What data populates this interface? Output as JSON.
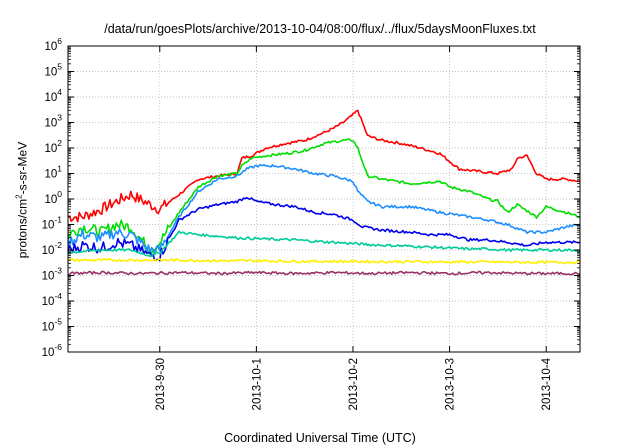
{
  "chart_data": {
    "type": "line",
    "title": "/data/run/goesPlots/archive/2013-10-04/08:00/flux/../flux/5daysMoonFluxes.txt",
    "xlabel": "Coordinated Universal Time (UTC)",
    "ylabel_main": "protons/cm",
    "ylabel_sup": "2",
    "ylabel_rest": "-s-sr-MeV",
    "yscale": "log",
    "ylim": [
      1e-06,
      1000000.0
    ],
    "xlim": [
      -0.95,
      4.35
    ],
    "grid": true,
    "x_ticks": [
      {
        "x": 0,
        "label": "2013-9-30"
      },
      {
        "x": 1,
        "label": "2013-10-1"
      },
      {
        "x": 2,
        "label": "2013-10-2"
      },
      {
        "x": 3,
        "label": "2013-10-3"
      },
      {
        "x": 4,
        "label": "2013-10-4"
      }
    ],
    "y_ticks": [
      {
        "exp": -6,
        "base": "10",
        "sup": "-6"
      },
      {
        "exp": -5,
        "base": "10",
        "sup": "-5"
      },
      {
        "exp": -4,
        "base": "10",
        "sup": "-4"
      },
      {
        "exp": -3,
        "base": "10",
        "sup": "-3"
      },
      {
        "exp": -2,
        "base": "10",
        "sup": "-2"
      },
      {
        "exp": -1,
        "base": "10",
        "sup": "-1"
      },
      {
        "exp": 0,
        "base": "10",
        "sup": "0"
      },
      {
        "exp": 1,
        "base": "10",
        "sup": "1"
      },
      {
        "exp": 2,
        "base": "10",
        "sup": "2"
      },
      {
        "exp": 3,
        "base": "10",
        "sup": "3"
      },
      {
        "exp": 4,
        "base": "10",
        "sup": "4"
      },
      {
        "exp": 5,
        "base": "10",
        "sup": "5"
      },
      {
        "exp": 6,
        "base": "10",
        "sup": "6"
      }
    ],
    "series": [
      {
        "color": "#ff0000",
        "x": [
          -0.95,
          -0.8,
          -0.6,
          -0.45,
          -0.3,
          -0.1,
          0.0,
          0.2,
          0.4,
          0.6,
          0.8,
          0.85,
          0.95,
          1.1,
          1.3,
          1.5,
          1.7,
          1.8,
          1.9,
          2.0,
          2.05,
          2.15,
          2.3,
          2.5,
          2.7,
          2.9,
          3.1,
          3.3,
          3.5,
          3.65,
          3.7,
          3.8,
          3.9,
          4.0,
          4.2,
          4.35
        ],
        "y": [
          0.2,
          0.2,
          0.4,
          0.8,
          1.5,
          0.6,
          0.4,
          1.5,
          6,
          8,
          10,
          40,
          50,
          100,
          150,
          200,
          400,
          600,
          1000,
          2000,
          3000,
          300,
          200,
          150,
          100,
          60,
          15,
          12,
          10,
          15,
          40,
          50,
          10,
          6,
          6,
          5
        ]
      },
      {
        "color": "#00dd00",
        "x": [
          -0.95,
          -0.8,
          -0.6,
          -0.45,
          -0.3,
          -0.1,
          0.0,
          0.2,
          0.4,
          0.6,
          0.8,
          0.85,
          0.95,
          1.1,
          1.3,
          1.5,
          1.7,
          1.9,
          2.0,
          2.05,
          2.15,
          2.3,
          2.6,
          2.9,
          3.0,
          3.2,
          3.4,
          3.5,
          3.6,
          3.7,
          3.9,
          4.0,
          4.2,
          4.35
        ],
        "y": [
          0.04,
          0.08,
          0.05,
          0.1,
          0.08,
          0.01,
          0.02,
          0.3,
          3,
          8,
          10,
          20,
          40,
          50,
          60,
          80,
          150,
          200,
          200,
          100,
          8,
          6,
          4,
          5,
          3,
          2,
          1,
          0.8,
          0.3,
          0.6,
          0.2,
          0.5,
          0.3,
          0.2
        ]
      },
      {
        "color": "#1e8fff",
        "x": [
          -0.95,
          -0.8,
          -0.6,
          -0.45,
          -0.3,
          -0.1,
          0.0,
          0.2,
          0.4,
          0.6,
          0.8,
          0.9,
          1.0,
          1.2,
          1.4,
          1.6,
          1.8,
          2.0,
          2.05,
          2.15,
          2.3,
          2.6,
          2.9,
          3.2,
          3.4,
          3.6,
          3.8,
          4.0,
          4.2,
          4.35
        ],
        "y": [
          0.02,
          0.04,
          0.03,
          0.05,
          0.04,
          0.01,
          0.01,
          0.2,
          2,
          6,
          8,
          15,
          20,
          20,
          15,
          10,
          8,
          5,
          2,
          0.8,
          0.5,
          0.5,
          0.3,
          0.2,
          0.15,
          0.1,
          0.05,
          0.05,
          0.08,
          0.1
        ]
      },
      {
        "color": "#0000ee",
        "x": [
          -0.95,
          -0.8,
          -0.6,
          -0.45,
          -0.3,
          -0.1,
          0.0,
          0.1,
          0.2,
          0.4,
          0.6,
          0.8,
          0.9,
          1.0,
          1.2,
          1.4,
          1.6,
          1.8,
          2.0,
          2.1,
          2.3,
          2.6,
          2.8,
          3.0,
          3.2,
          3.4,
          3.6,
          3.8,
          4.0,
          4.2,
          4.35
        ],
        "y": [
          0.01,
          0.015,
          0.012,
          0.02,
          0.015,
          0.006,
          0.006,
          0.03,
          0.15,
          0.4,
          0.6,
          0.8,
          1.2,
          0.8,
          0.6,
          0.5,
          0.3,
          0.25,
          0.15,
          0.08,
          0.06,
          0.05,
          0.04,
          0.04,
          0.025,
          0.025,
          0.02,
          0.015,
          0.02,
          0.02,
          0.02
        ]
      },
      {
        "color": "#00cc99",
        "x": [
          -0.95,
          -0.6,
          -0.3,
          -0.1,
          0.0,
          0.1,
          0.2,
          0.4,
          0.6,
          0.8,
          1.0,
          1.2,
          1.4,
          1.6,
          1.8,
          2.0,
          2.2,
          2.4,
          2.6,
          2.8,
          3.0,
          3.2,
          3.4,
          3.6,
          3.8,
          4.0,
          4.2,
          4.35
        ],
        "y": [
          0.008,
          0.01,
          0.01,
          0.006,
          0.008,
          0.02,
          0.05,
          0.04,
          0.035,
          0.03,
          0.028,
          0.026,
          0.025,
          0.022,
          0.02,
          0.018,
          0.016,
          0.015,
          0.014,
          0.013,
          0.012,
          0.011,
          0.011,
          0.01,
          0.01,
          0.01,
          0.01,
          0.01
        ]
      },
      {
        "color": "#ffee00",
        "x": [
          -0.95,
          -0.6,
          -0.2,
          0.2,
          0.6,
          1.0,
          1.4,
          1.8,
          2.2,
          2.6,
          3.0,
          3.4,
          3.8,
          4.35
        ],
        "y": [
          0.004,
          0.004,
          0.004,
          0.004,
          0.0038,
          0.0038,
          0.0036,
          0.0036,
          0.0035,
          0.0035,
          0.0034,
          0.0034,
          0.0033,
          0.0033
        ]
      },
      {
        "color": "#993366",
        "x": [
          -0.95,
          -0.6,
          -0.2,
          0.2,
          0.6,
          1.0,
          1.4,
          1.8,
          2.2,
          2.6,
          3.0,
          3.4,
          3.8,
          4.35
        ],
        "y": [
          0.0012,
          0.0013,
          0.0012,
          0.0013,
          0.0012,
          0.0013,
          0.0012,
          0.0013,
          0.0012,
          0.0013,
          0.0012,
          0.0013,
          0.0012,
          0.0012
        ]
      }
    ]
  }
}
